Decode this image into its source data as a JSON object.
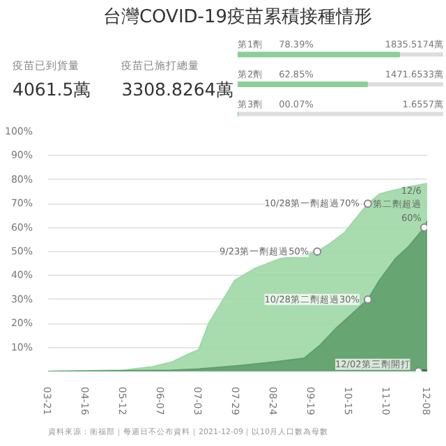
{
  "chart_data": [
    {
      "type": "other",
      "title": "台灣COVID-19疫苗累積接種情形",
      "annotations": [
        "疫苗已到貨量",
        "4061.5萬",
        "疫苗已施打總量",
        "3308.8264萬"
      ]
    },
    {
      "type": "bar",
      "orientation": "horizontal",
      "xlim": [
        0,
        100
      ],
      "tick_labels": false,
      "categories": [
        "第1劑",
        "第2劑",
        "第3劑"
      ],
      "series": [
        {
          "color": "#8ccf98",
          "values": [
            78.39,
            62.85,
            0.07
          ],
          "value_labels": [
            "78.39%",
            "62.85%",
            "00.07%"
          ]
        }
      ],
      "annotations": [
        "1835.5174萬",
        "1471.6533萬",
        "1.6557萬"
      ]
    },
    {
      "type": "area",
      "grid": "y",
      "xlim": [
        "2021-03-21",
        "2021-12-08"
      ],
      "ylim": [
        0,
        100
      ],
      "xticks": [
        {
          "value": "2021-03-21",
          "label": "03-21"
        },
        {
          "value": "2021-04-16",
          "label": "04-16"
        },
        {
          "value": "2021-05-12",
          "label": "05-12"
        },
        {
          "value": "2021-06-07",
          "label": "06-07"
        },
        {
          "value": "2021-07-03",
          "label": "07-03"
        },
        {
          "value": "2021-07-29",
          "label": "07-29"
        },
        {
          "value": "2021-08-24",
          "label": "08-24"
        },
        {
          "value": "2021-09-19",
          "label": "09-19"
        },
        {
          "value": "2021-10-15",
          "label": "10-15"
        },
        {
          "value": "2021-11-10",
          "label": "11-10"
        },
        {
          "value": "2021-12-08",
          "label": "12-08"
        }
      ],
      "yticks": [
        {
          "value": 10,
          "label": "10%"
        },
        {
          "value": 20,
          "label": "20%"
        },
        {
          "value": 30,
          "label": "30%"
        },
        {
          "value": 40,
          "label": "40%"
        },
        {
          "value": 50,
          "label": "50%"
        },
        {
          "value": 60,
          "label": "60%"
        },
        {
          "value": 70,
          "label": "70%"
        },
        {
          "value": 80,
          "label": "80%"
        },
        {
          "value": 90,
          "label": "90%"
        },
        {
          "value": 100,
          "label": "100%"
        }
      ],
      "series": [
        {
          "color": "#9ed8a6",
          "x": [
            "2021-03-21",
            "2021-05-12",
            "2021-06-01",
            "2021-06-15",
            "2021-06-25",
            "2021-07-03",
            "2021-07-10",
            "2021-07-20",
            "2021-07-28",
            "2021-08-11",
            "2021-08-28",
            "2021-09-10",
            "2021-09-23",
            "2021-10-01",
            "2021-10-12",
            "2021-10-20",
            "2021-10-28",
            "2021-11-05",
            "2021-11-11",
            "2021-11-25",
            "2021-12-08"
          ],
          "values": [
            0,
            0.5,
            2,
            4,
            7,
            9,
            20,
            30,
            38,
            43,
            47,
            48,
            50,
            53,
            58,
            64,
            70,
            74,
            75,
            77,
            78.39
          ]
        },
        {
          "color": "#5f9f6d",
          "x": [
            "2021-03-21",
            "2021-06-15",
            "2021-07-03",
            "2021-08-01",
            "2021-08-25",
            "2021-09-14",
            "2021-09-25",
            "2021-10-06",
            "2021-10-17",
            "2021-10-28",
            "2021-11-05",
            "2021-11-16",
            "2021-11-25",
            "2021-12-06",
            "2021-12-08"
          ],
          "values": [
            0,
            0.5,
            1,
            2.5,
            4,
            5.5,
            11,
            18,
            24,
            30,
            38,
            47,
            52,
            60,
            62.85
          ]
        },
        {
          "type": "line",
          "color": "#2f6b3e",
          "x": [
            "2021-12-02",
            "2021-12-08"
          ],
          "values": [
            0,
            0.07
          ]
        }
      ],
      "annotations": [
        {
          "text": "10/28第一劑超過70%",
          "x": "2021-10-28",
          "y": 70
        },
        {
          "text": "9/23第一劑超過50%",
          "x": "2021-09-23",
          "y": 50
        },
        {
          "text": "10/28第二劑超過30%",
          "x": "2021-10-28",
          "y": 30
        },
        {
          "text": "12/6\n第二劑超過\n60%",
          "x": "2021-12-06",
          "y": 60
        },
        {
          "text": "12/02第三劑開打",
          "x": "2021-12-02",
          "y": 0.07
        },
        "資料來源：衛福部｜每週日不公布資料｜2021-12-09｜以10月人口數為母數"
      ]
    }
  ]
}
